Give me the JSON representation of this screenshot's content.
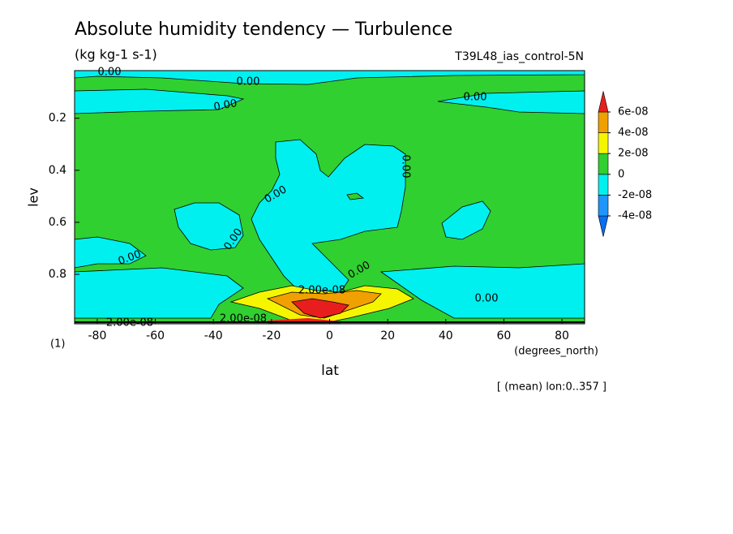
{
  "chart_data": {
    "type": "contour",
    "title": "Absolute humidity tendency — Turbulence",
    "subtitle": "(kg kg-1 s-1)",
    "run_label": "T39L48_ias_control-5N",
    "x_label": "lat",
    "x_unit": "(degrees_north)",
    "y_label": "lev",
    "y_unit": "(1)",
    "footnote": "[ (mean) lon:0..357 ]",
    "xlim": [
      -87.8,
      87.8
    ],
    "xticks": [
      -80,
      -60,
      -40,
      -20,
      0,
      20,
      40,
      60,
      80
    ],
    "ylim": [
      0.99,
      0.017
    ],
    "yticks": [
      0.2,
      0.4,
      0.6,
      0.8
    ],
    "colorbar": {
      "levels": [
        {
          "value": -4e-08,
          "label": "-4e-08"
        },
        {
          "value": -2e-08,
          "label": "-2e-08"
        },
        0,
        {
          "value": 2e-08,
          "label": "2e-08"
        },
        {
          "value": 4e-08,
          "label": "4e-08"
        },
        {
          "value": 6e-08,
          "label": "6e-08"
        }
      ],
      "colors": [
        "#0a6ef0",
        "#1e96ff",
        "#00f0f0",
        "#30d030",
        "#f5f500",
        "#f0a000",
        "#e81e1e"
      ]
    },
    "contour_labels": [
      "0.00",
      "0.00",
      "0.00",
      "0.00",
      "0.00",
      "0.00",
      "0.00",
      "0.00",
      "0.00",
      "0.00",
      "2.00e-08",
      "2.00e-08",
      "2.00e-08"
    ]
  }
}
